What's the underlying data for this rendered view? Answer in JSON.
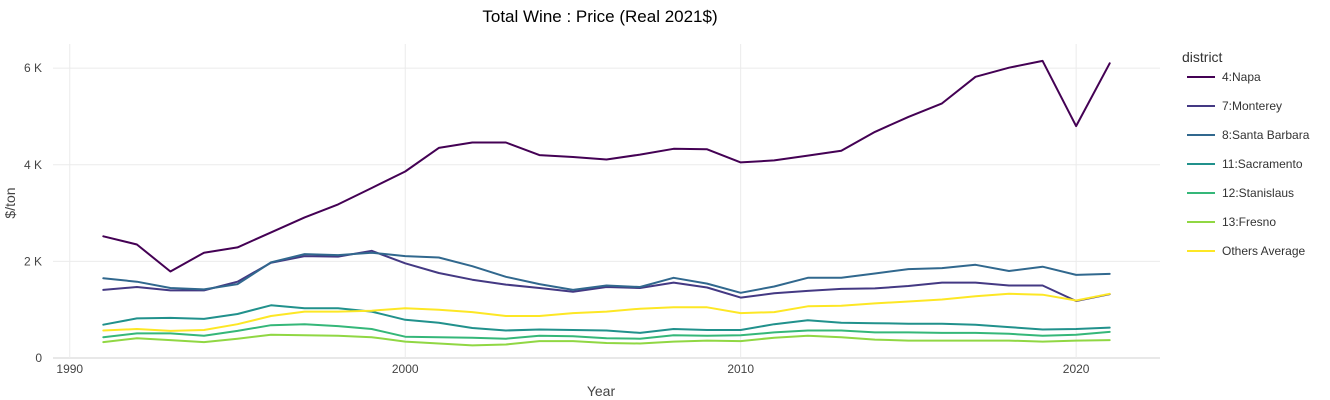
{
  "chart_data": {
    "type": "line",
    "title": "Total Wine : Price (Real 2021$)",
    "xlabel": "Year",
    "ylabel": "$/ton",
    "xlim": [
      1989.5,
      2022.5
    ],
    "ylim": [
      0,
      6500
    ],
    "x_ticks": [
      1990,
      2000,
      2010,
      2020
    ],
    "y_ticks": [
      0,
      2000,
      4000,
      6000
    ],
    "y_tick_labels": [
      "0",
      "2 K",
      "4 K",
      "6 K"
    ],
    "grid": true,
    "legend_title": "district",
    "legend_position": "right",
    "x": [
      1991,
      1992,
      1993,
      1994,
      1995,
      1996,
      1997,
      1998,
      1999,
      2000,
      2001,
      2002,
      2003,
      2004,
      2005,
      2006,
      2007,
      2008,
      2009,
      2010,
      2011,
      2012,
      2013,
      2014,
      2015,
      2016,
      2017,
      2018,
      2019,
      2020,
      2021
    ],
    "series": [
      {
        "name": "4:Napa",
        "color": "#440154",
        "values": [
          2520,
          2350,
          1790,
          2180,
          2290,
          2600,
          2910,
          3180,
          3520,
          3860,
          4350,
          4460,
          4460,
          4200,
          4160,
          4110,
          4210,
          4330,
          4320,
          4050,
          4090,
          4190,
          4290,
          4680,
          4990,
          5270,
          5820,
          6010,
          6150,
          4800,
          6100
        ]
      },
      {
        "name": "7:Monterey",
        "color": "#443983",
        "values": [
          1410,
          1470,
          1400,
          1400,
          1580,
          1970,
          2110,
          2100,
          2220,
          1960,
          1760,
          1620,
          1520,
          1450,
          1370,
          1470,
          1450,
          1560,
          1460,
          1250,
          1340,
          1390,
          1430,
          1440,
          1490,
          1560,
          1560,
          1500,
          1500,
          1180,
          1320
        ]
      },
      {
        "name": "8:Santa Barbara",
        "color": "#31688e",
        "values": [
          1650,
          1580,
          1450,
          1420,
          1530,
          1980,
          2150,
          2130,
          2180,
          2110,
          2080,
          1900,
          1680,
          1530,
          1410,
          1500,
          1470,
          1660,
          1540,
          1350,
          1480,
          1660,
          1660,
          1750,
          1840,
          1860,
          1930,
          1800,
          1890,
          1720,
          1740
        ]
      },
      {
        "name": "11:Sacramento",
        "color": "#21918c",
        "values": [
          690,
          820,
          830,
          810,
          910,
          1090,
          1030,
          1030,
          960,
          790,
          730,
          620,
          570,
          590,
          580,
          570,
          520,
          600,
          580,
          580,
          700,
          780,
          730,
          720,
          710,
          710,
          690,
          640,
          590,
          600,
          630
        ]
      },
      {
        "name": "12:Stanislaus",
        "color": "#35b779",
        "values": [
          430,
          510,
          510,
          460,
          560,
          680,
          700,
          660,
          600,
          440,
          430,
          420,
          400,
          460,
          450,
          410,
          400,
          470,
          460,
          470,
          530,
          570,
          570,
          530,
          530,
          520,
          520,
          500,
          460,
          480,
          540
        ]
      },
      {
        "name": "13:Fresno",
        "color": "#90d743",
        "values": [
          330,
          410,
          370,
          330,
          400,
          480,
          470,
          460,
          430,
          340,
          300,
          260,
          280,
          350,
          350,
          310,
          300,
          340,
          360,
          350,
          420,
          460,
          430,
          380,
          360,
          360,
          360,
          360,
          340,
          360,
          370
        ]
      },
      {
        "name": "Others Average",
        "color": "#fde725",
        "values": [
          570,
          600,
          560,
          580,
          700,
          870,
          960,
          960,
          980,
          1030,
          1000,
          950,
          870,
          870,
          930,
          960,
          1020,
          1050,
          1050,
          930,
          950,
          1070,
          1080,
          1130,
          1170,
          1210,
          1280,
          1330,
          1310,
          1190,
          1330
        ]
      }
    ]
  }
}
